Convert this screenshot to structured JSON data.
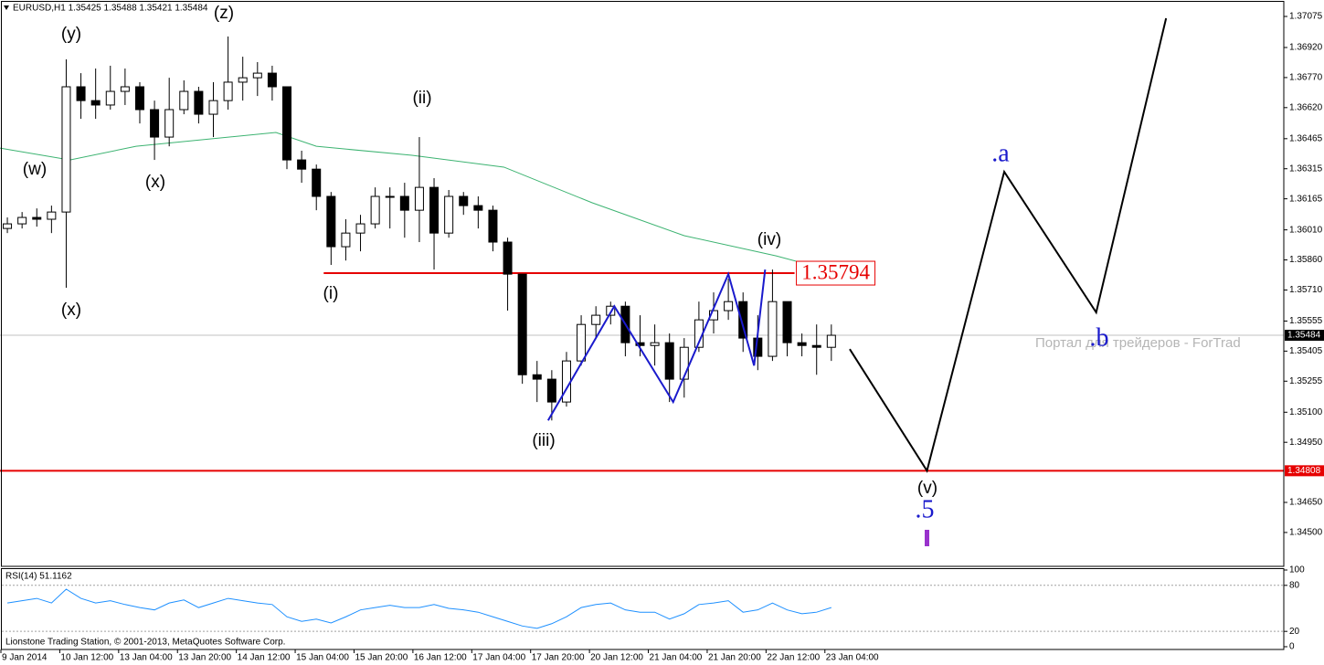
{
  "chart_data": [
    {
      "type": "candlestick",
      "title": "EURUSD,H1  1.35425 1.35488 1.35421 1.35484",
      "x": [
        2,
        6,
        10,
        14,
        18,
        22,
        26,
        30,
        34,
        38,
        42,
        46,
        50,
        54,
        58,
        62,
        66,
        70,
        74,
        78,
        82,
        86,
        90,
        94,
        98,
        102,
        106,
        110,
        114,
        118,
        122,
        126,
        130,
        134,
        138,
        142,
        146,
        150,
        154,
        158,
        162,
        166,
        170,
        174,
        178,
        182,
        186,
        190,
        194,
        198,
        202,
        206,
        210,
        214,
        218,
        222,
        226
      ],
      "open": [
        1.36017,
        1.3604,
        1.36072,
        1.36063,
        1.36099,
        1.36724,
        1.36655,
        1.36633,
        1.36701,
        1.36724,
        1.3661,
        1.36473,
        1.3661,
        1.36701,
        1.36587,
        1.36655,
        1.36747,
        1.36769,
        1.36792,
        1.36724,
        1.36359,
        1.36313,
        1.36177,
        1.35926,
        1.35994,
        1.3604,
        1.36177,
        1.36177,
        1.36108,
        1.36222,
        1.35994,
        1.36177,
        1.36131,
        1.36108,
        1.35949,
        1.35789,
        1.35287,
        1.35265,
        1.35151,
        1.35356,
        1.35538,
        1.35584,
        1.35629,
        1.35447,
        1.35433,
        1.35447,
        1.35265,
        1.35424,
        1.35561,
        1.35607,
        1.35652,
        1.3547,
        1.35379,
        1.35652,
        1.35447,
        1.35433,
        1.35424
      ],
      "high": [
        1.36072,
        1.36099,
        1.36117,
        1.36131,
        1.36861,
        1.36792,
        1.36815,
        1.36829,
        1.36815,
        1.36747,
        1.36655,
        1.36769,
        1.36756,
        1.36724,
        1.36747,
        1.36975,
        1.36874,
        1.36847,
        1.36829,
        1.36724,
        1.36405,
        1.36336,
        1.36199,
        1.36063,
        1.36085,
        1.36222,
        1.36222,
        1.36245,
        1.36473,
        1.36268,
        1.36209,
        1.36199,
        1.36177,
        1.36131,
        1.35971,
        1.35789,
        1.35356,
        1.3531,
        1.35401,
        1.35584,
        1.35629,
        1.35652,
        1.35652,
        1.35584,
        1.35538,
        1.35493,
        1.3547,
        1.35652,
        1.35698,
        1.35766,
        1.35698,
        1.35584,
        1.35812,
        1.35652,
        1.35493,
        1.35538,
        1.35538
      ],
      "low": [
        1.35994,
        1.36017,
        1.36026,
        1.35994,
        1.35721,
        1.36564,
        1.36564,
        1.3661,
        1.36633,
        1.36541,
        1.36359,
        1.36427,
        1.36587,
        1.36541,
        1.36473,
        1.3661,
        1.36655,
        1.36678,
        1.36655,
        1.36313,
        1.36245,
        1.36108,
        1.35835,
        1.35857,
        1.35903,
        1.36017,
        1.36017,
        1.35971,
        1.35949,
        1.35812,
        1.35971,
        1.36085,
        1.36017,
        1.35903,
        1.35607,
        1.35242,
        1.35151,
        1.35059,
        1.35128,
        1.35333,
        1.3547,
        1.35538,
        1.35379,
        1.35379,
        1.35333,
        1.35151,
        1.35173,
        1.35401,
        1.35493,
        1.35561,
        1.35401,
        1.3531,
        1.35356,
        1.35379,
        1.35379,
        1.35287,
        1.35356
      ],
      "close": [
        1.3604,
        1.36072,
        1.36063,
        1.36099,
        1.36724,
        1.36655,
        1.36633,
        1.36701,
        1.36724,
        1.3661,
        1.36473,
        1.3661,
        1.36701,
        1.36587,
        1.36655,
        1.36747,
        1.36769,
        1.36792,
        1.36724,
        1.36359,
        1.36313,
        1.36177,
        1.35926,
        1.35994,
        1.3604,
        1.36177,
        1.36177,
        1.36108,
        1.36222,
        1.35994,
        1.36177,
        1.36131,
        1.36108,
        1.35949,
        1.35789,
        1.35287,
        1.35265,
        1.35151,
        1.35356,
        1.35538,
        1.35584,
        1.35629,
        1.35447,
        1.35433,
        1.35447,
        1.35265,
        1.35424,
        1.35561,
        1.35607,
        1.35652,
        1.3547,
        1.35379,
        1.35652,
        1.35447,
        1.35433,
        1.35424,
        1.35484
      ],
      "up_color": "#ffffff",
      "down_color": "#000000",
      "xlim": [
        0,
        349
      ],
      "ylim": [
        1.34331,
        1.37157
      ],
      "xticks": [
        {
          "value": 0,
          "label": "9 Jan 2014"
        },
        {
          "value": 16,
          "label": "10 Jan 12:00"
        },
        {
          "value": 32,
          "label": "13 Jan 04:00"
        },
        {
          "value": 48,
          "label": "13 Jan 20:00"
        },
        {
          "value": 64,
          "label": "14 Jan 12:00"
        },
        {
          "value": 80,
          "label": "15 Jan 04:00"
        },
        {
          "value": 96,
          "label": "15 Jan 20:00"
        },
        {
          "value": 112,
          "label": "16 Jan 12:00"
        },
        {
          "value": 128,
          "label": "17 Jan 04:00"
        },
        {
          "value": 144,
          "label": "17 Jan 20:00"
        },
        {
          "value": 160,
          "label": "20 Jan 12:00"
        },
        {
          "value": 176,
          "label": "21 Jan 04:00"
        },
        {
          "value": 192,
          "label": "21 Jan 20:00"
        },
        {
          "value": 208,
          "label": "22 Jan 12:00"
        },
        {
          "value": 224,
          "label": "23 Jan 04:00"
        }
      ],
      "yticks": [
        1.37075,
        {
          "value": 1.3692,
          "label": "1.36920"
        },
        {
          "value": 1.3677,
          "label": "1.36770"
        },
        {
          "value": 1.3662,
          "label": "1.36620"
        },
        1.36465,
        1.36315,
        1.36165,
        {
          "value": 1.3601,
          "label": "1.36010"
        },
        {
          "value": 1.3586,
          "label": "1.35860"
        },
        {
          "value": 1.3571,
          "label": "1.35710"
        },
        1.35555,
        1.35405,
        1.35255,
        {
          "value": 1.351,
          "label": "1.35100"
        },
        {
          "value": 1.3495,
          "label": "1.34950"
        },
        {
          "value": 1.3465,
          "label": "1.34650"
        },
        {
          "value": 1.345,
          "label": "1.34500"
        }
      ],
      "moving_average": {
        "color": "#3cb371",
        "x": [
          0,
          19,
          37,
          75,
          86,
          112,
          137,
          161,
          186,
          211,
          222
        ],
        "values": [
          1.36418,
          1.36359,
          1.36427,
          1.36496,
          1.36427,
          1.36382,
          1.36323,
          1.36145,
          1.35981,
          1.3588,
          1.35826
        ]
      },
      "wave_pattern": {
        "color": "#1a1acc",
        "x": [
          149,
          167,
          183,
          198,
          205,
          208
        ],
        "values": [
          1.35059,
          1.35629,
          1.35151,
          1.35789,
          1.35333,
          1.35812
        ]
      },
      "projection": {
        "color": "#000000",
        "x": [
          231,
          252,
          273,
          298,
          317
        ],
        "values": [
          1.35415,
          1.34808,
          1.363,
          1.35598,
          1.37066
        ]
      },
      "resistance": {
        "value": 1.35794,
        "xlim": [
          88,
          216
        ],
        "color": "#e60000"
      },
      "support": {
        "value": 1.34808,
        "color": "#e60000"
      },
      "wave_labels": [
        "(z)",
        "(y)",
        "(w)",
        "(x)",
        "(x)",
        "(ii)",
        "(i)",
        "(iii)",
        "(iv)",
        "(v)"
      ],
      "target_labels": [
        ".5",
        ".a",
        ".b"
      ],
      "target_color": "#1a1acc",
      "watermark": "Портал для трейдеров - ForTrad"
    },
    {
      "type": "line",
      "title": "RSI(14) 51.1162",
      "x": [
        2,
        6,
        10,
        14,
        18,
        22,
        26,
        30,
        34,
        38,
        42,
        46,
        50,
        54,
        58,
        62,
        66,
        70,
        74,
        78,
        82,
        86,
        90,
        94,
        98,
        102,
        106,
        110,
        114,
        118,
        122,
        126,
        130,
        134,
        138,
        142,
        146,
        150,
        154,
        158,
        162,
        166,
        170,
        174,
        178,
        182,
        186,
        190,
        194,
        198,
        202,
        206,
        210,
        214,
        218,
        222,
        226
      ],
      "values": [
        57,
        60,
        63,
        57,
        75,
        63,
        57,
        60,
        55,
        51,
        48,
        57,
        61,
        51,
        57,
        63,
        60,
        57,
        55,
        39,
        33,
        36,
        31,
        39,
        48,
        51,
        54,
        51,
        51,
        55,
        50,
        48,
        45,
        39,
        33,
        27,
        24,
        30,
        39,
        51,
        55,
        57,
        48,
        45,
        45,
        36,
        43,
        55,
        57,
        60,
        45,
        48,
        57,
        48,
        43,
        45,
        51
      ],
      "color": "#1e90ff",
      "xlim": [
        0,
        349
      ],
      "ylim": [
        -3.6,
        102.4
      ],
      "yticks": [
        100,
        80,
        20,
        0
      ],
      "levels": [
        80,
        20
      ]
    }
  ],
  "footer": "Lionstone Trading Station, © 2001-2013, MetaQuotes Software Corp."
}
